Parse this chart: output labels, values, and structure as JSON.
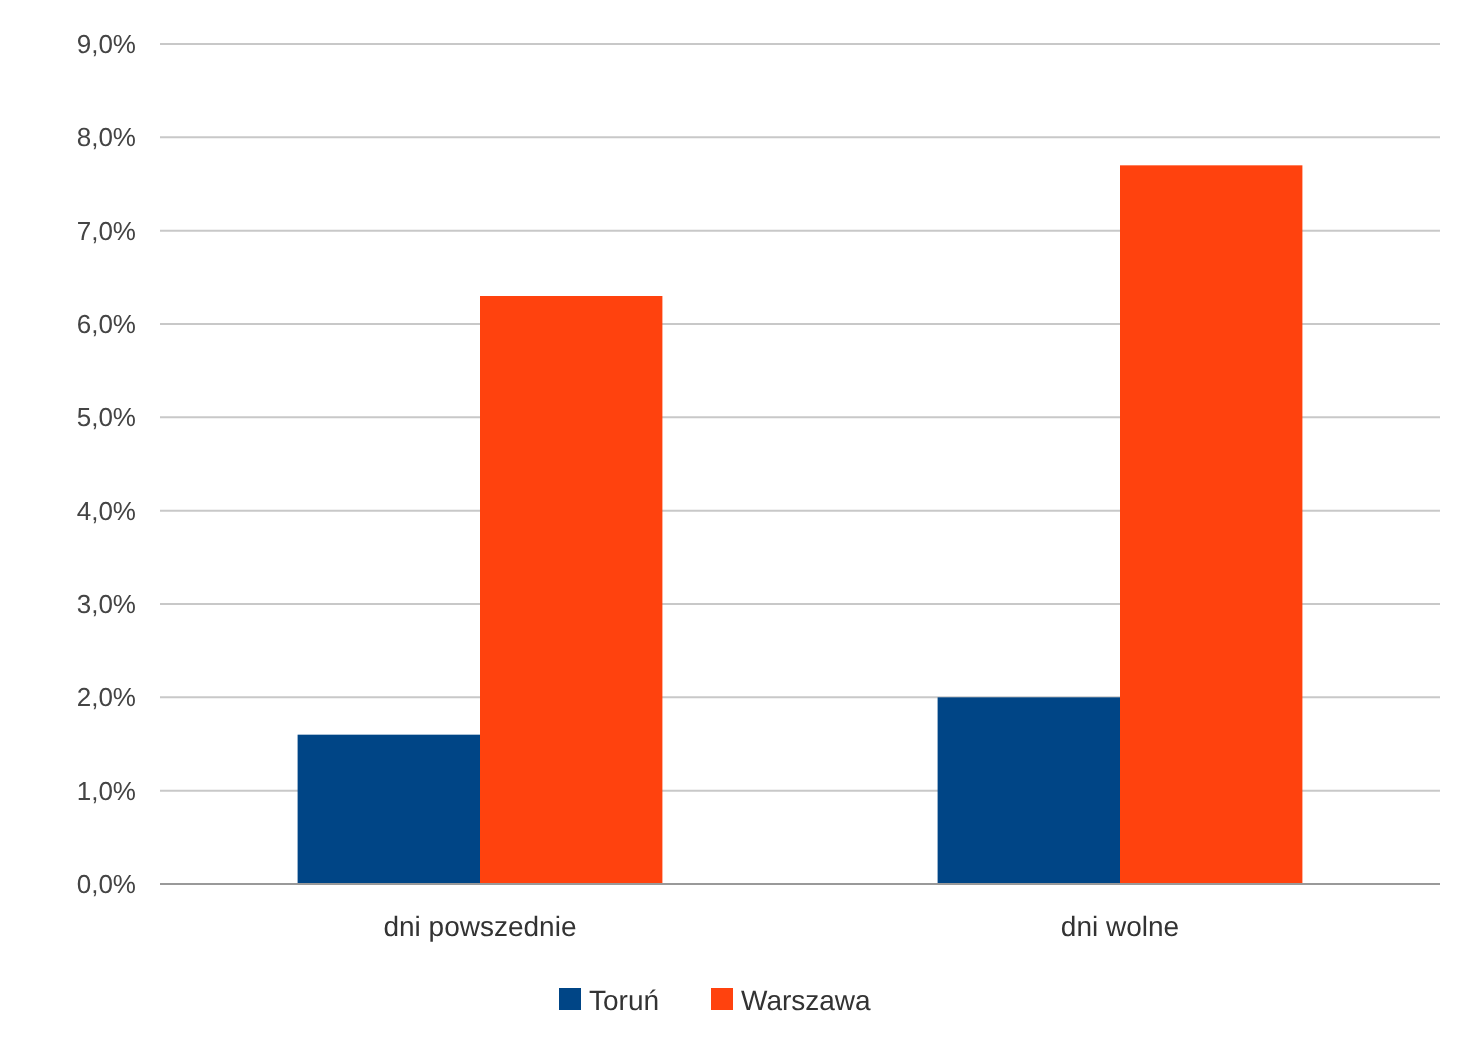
{
  "chart_data": {
    "type": "bar",
    "categories": [
      "dni powszednie",
      "dni wolne"
    ],
    "series": [
      {
        "name": "Toruń",
        "color": "#004586",
        "values": [
          1.6,
          2.0
        ]
      },
      {
        "name": "Warszawa",
        "color": "#ff420e",
        "values": [
          6.3,
          7.7
        ]
      }
    ],
    "ylim": [
      0,
      9
    ],
    "yticks": [
      {
        "value": 0,
        "label": "0,0%"
      },
      {
        "value": 1,
        "label": "1,0%"
      },
      {
        "value": 2,
        "label": "2,0%"
      },
      {
        "value": 3,
        "label": "3,0%"
      },
      {
        "value": 4,
        "label": "4,0%"
      },
      {
        "value": 5,
        "label": "5,0%"
      },
      {
        "value": 6,
        "label": "6,0%"
      },
      {
        "value": 7,
        "label": "7,0%"
      },
      {
        "value": 8,
        "label": "8,0%"
      },
      {
        "value": 9,
        "label": "9,0%"
      }
    ],
    "grid": "y",
    "legend": "bottom"
  }
}
